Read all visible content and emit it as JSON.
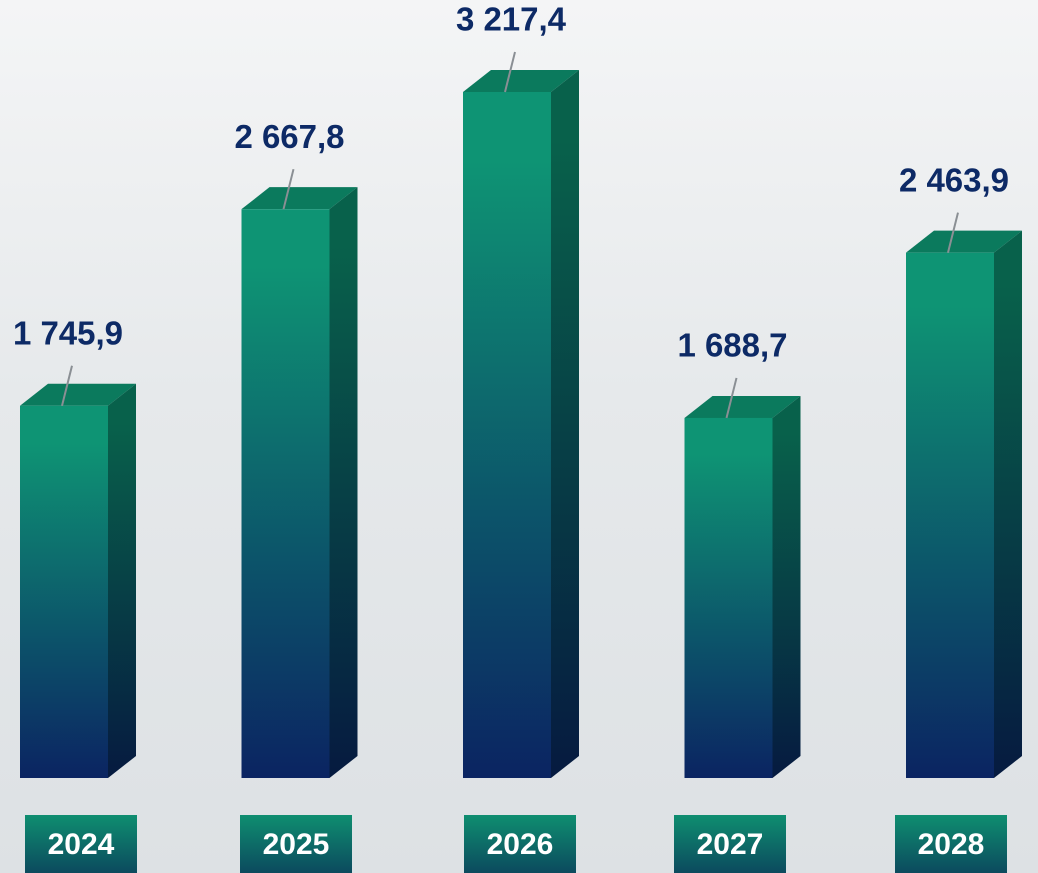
{
  "chart_data": {
    "type": "bar3d",
    "categories": [
      "2024",
      "2025",
      "2026",
      "2027",
      "2028"
    ],
    "values": [
      1745.9,
      2667.8,
      3217.4,
      1688.7,
      2463.9
    ],
    "value_labels": [
      "1 745,9",
      "2 667,8",
      "3 217,4",
      "1 688,7",
      "2 463,9"
    ],
    "colors": [
      "#0e9474",
      "#0b2462"
    ]
  }
}
